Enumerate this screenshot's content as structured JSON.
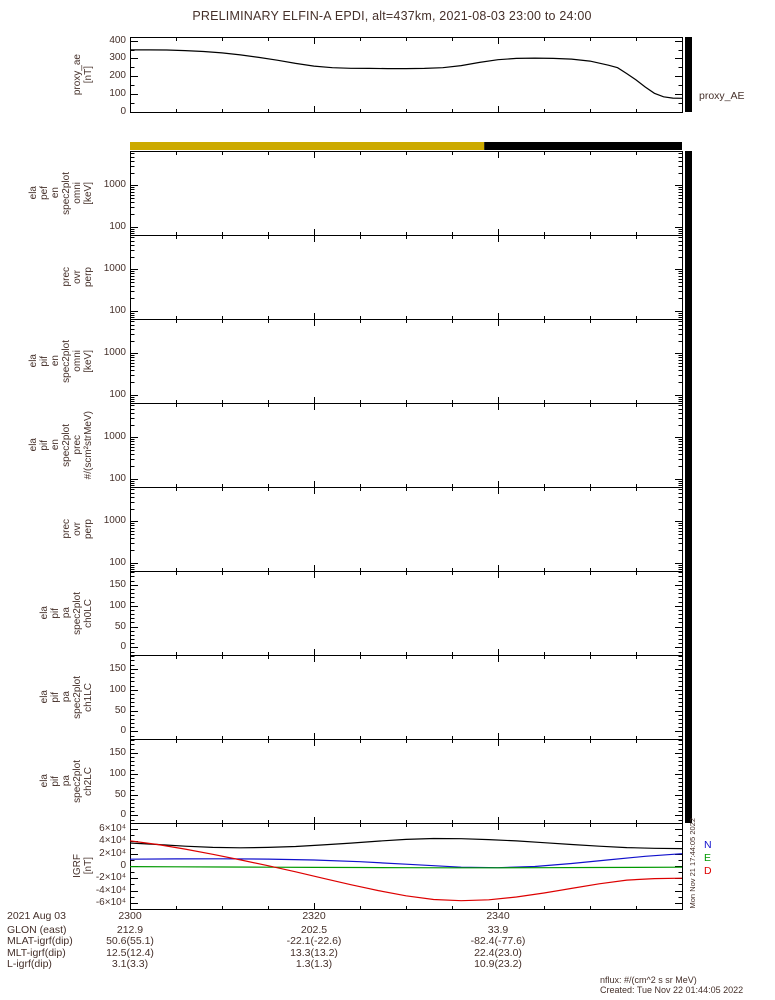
{
  "title": "PRELIMINARY ELFIN-A EPDI, alt=437km, 2021-08-03 23:00 to 24:00",
  "colors": {
    "background": "#ffffff",
    "frame": "#000000",
    "text": "#45302a",
    "orbit_bar_day": "#ccaa00",
    "orbit_bar_night": "#000000",
    "igrf_b": "#000000",
    "igrf_n": "#1111cc",
    "igrf_e": "#009900",
    "igrf_d": "#dd0000"
  },
  "xaxis": {
    "tick_labels": [
      "2300",
      "2320",
      "2340"
    ],
    "tick_minutes": [
      0,
      20,
      40
    ],
    "range_minutes": [
      0,
      60
    ],
    "date_label": "2021 Aug 03"
  },
  "panels": [
    {
      "name": "proxy-ae",
      "ylabel": [
        "proxy_ae",
        "[nT]"
      ],
      "scale": "linear",
      "yrange": [
        0,
        420
      ],
      "minor_step": 50,
      "colorbar": true,
      "yticks": [
        {
          "v": 0,
          "t": "0"
        },
        {
          "v": 100,
          "t": "100"
        },
        {
          "v": 200,
          "t": "200"
        },
        {
          "v": 300,
          "t": "300"
        },
        {
          "v": 400,
          "t": "400"
        }
      ]
    },
    {
      "name": "ela-pef-en-spec2plot-omni",
      "ylabel": [
        "ela",
        "pef",
        "en",
        "spec2plot",
        "omni",
        "[keV]"
      ],
      "scale": "log",
      "yrange": [
        63,
        6800
      ],
      "colorbar": true,
      "yticks": [
        {
          "v": 100,
          "t": "100"
        },
        {
          "v": 1000,
          "t": "1000"
        }
      ]
    },
    {
      "name": "prec-ovr-perp-1",
      "ylabel": [
        "prec",
        "ovr",
        "perp"
      ],
      "scale": "log",
      "yrange": [
        63,
        6800
      ],
      "colorbar": true,
      "yticks": [
        {
          "v": 100,
          "t": "100"
        },
        {
          "v": 1000,
          "t": "1000"
        }
      ]
    },
    {
      "name": "ela-pif-en-spec2plot-omni",
      "ylabel": [
        "ela",
        "pif",
        "en",
        "spec2plot",
        "omni",
        "[keV]"
      ],
      "scale": "log",
      "yrange": [
        63,
        6800
      ],
      "colorbar": true,
      "yticks": [
        {
          "v": 100,
          "t": "100"
        },
        {
          "v": 1000,
          "t": "1000"
        }
      ]
    },
    {
      "name": "ela-pif-en-spec2plot-prec",
      "ylabel": [
        "ela",
        "pif",
        "en",
        "spec2plot",
        "prec",
        "#/(scm²strMeV)"
      ],
      "scale": "log",
      "yrange": [
        63,
        6800
      ],
      "colorbar": true,
      "yticks": [
        {
          "v": 100,
          "t": "100"
        },
        {
          "v": 1000,
          "t": "1000"
        }
      ]
    },
    {
      "name": "prec-ovr-perp-2",
      "ylabel": [
        "prec",
        "ovr",
        "perp"
      ],
      "scale": "log",
      "yrange": [
        63,
        6800
      ],
      "colorbar": true,
      "yticks": [
        {
          "v": 100,
          "t": "100"
        },
        {
          "v": 1000,
          "t": "1000"
        }
      ]
    },
    {
      "name": "ela-pif-pa-spec2plot-ch0LC",
      "ylabel": [
        "ela",
        "pif",
        "pa",
        "spec2plot",
        "ch0LC"
      ],
      "scale": "linear",
      "yrange": [
        -18,
        183
      ],
      "minor_step": 10,
      "colorbar": true,
      "yticks": [
        {
          "v": 0,
          "t": "0"
        },
        {
          "v": 50,
          "t": "50"
        },
        {
          "v": 100,
          "t": "100"
        },
        {
          "v": 150,
          "t": "150"
        }
      ]
    },
    {
      "name": "ela-pif-pa-spec2plot-ch1LC",
      "ylabel": [
        "ela",
        "pif",
        "pa",
        "spec2plot",
        "ch1LC"
      ],
      "scale": "linear",
      "yrange": [
        -18,
        183
      ],
      "minor_step": 10,
      "colorbar": true,
      "yticks": [
        {
          "v": 0,
          "t": "0"
        },
        {
          "v": 50,
          "t": "50"
        },
        {
          "v": 100,
          "t": "100"
        },
        {
          "v": 150,
          "t": "150"
        }
      ]
    },
    {
      "name": "ela-pif-pa-spec2plot-ch2LC",
      "ylabel": [
        "ela",
        "pif",
        "pa",
        "spec2plot",
        "ch2LC"
      ],
      "scale": "linear",
      "yrange": [
        -18,
        183
      ],
      "minor_step": 10,
      "colorbar": true,
      "yticks": [
        {
          "v": 0,
          "t": "0"
        },
        {
          "v": 50,
          "t": "50"
        },
        {
          "v": 100,
          "t": "100"
        },
        {
          "v": 150,
          "t": "150"
        }
      ]
    },
    {
      "name": "igrf",
      "ylabel": [
        "IGRF",
        "[nT]"
      ],
      "scale": "linear",
      "yrange": [
        -70000,
        70000
      ],
      "minor_step": 10000,
      "colorbar": false,
      "yticks": [
        {
          "v": -60000,
          "t": "-6×10⁴"
        },
        {
          "v": -40000,
          "t": "-4×10⁴"
        },
        {
          "v": -20000,
          "t": "-2×10⁴"
        },
        {
          "v": 0,
          "t": "0"
        },
        {
          "v": 20000,
          "t": "2×10⁴"
        },
        {
          "v": 40000,
          "t": "4×10⁴"
        },
        {
          "v": 60000,
          "t": "6×10⁴"
        }
      ]
    }
  ],
  "orbit_bar": {
    "segments": [
      {
        "start_min": 0,
        "end_min": 38.5,
        "color": "#ccaa00"
      },
      {
        "start_min": 38.5,
        "end_min": 60,
        "color": "#000000"
      }
    ]
  },
  "right_labels": {
    "proxy": "proxy_AE",
    "igrf_components": [
      {
        "label": "N",
        "color": "#1111cc"
      },
      {
        "label": "E",
        "color": "#009900"
      },
      {
        "label": "D",
        "color": "#dd0000"
      }
    ]
  },
  "side_note": "Mon Nov 21 17:44:05 2022",
  "footer": {
    "nflux": "nflux: #/(cm^2 s sr MeV)",
    "created": "Created: Tue Nov 22 01:44:05 2022"
  },
  "annotations": [
    {
      "label": "GLON (east)",
      "values": [
        "212.9",
        "202.5",
        "33.9"
      ]
    },
    {
      "label": "MLAT-igrf(dip)",
      "values": [
        "50.6(55.1)",
        "-22.1(-22.6)",
        "-82.4(-77.6)"
      ]
    },
    {
      "label": "MLT-igrf(dip)",
      "values": [
        "12.5(12.4)",
        "13.3(13.2)",
        "22.4(23.0)"
      ]
    },
    {
      "label": "L-igrf(dip)",
      "values": [
        "3.1(3.3)",
        "1.3(1.3)",
        "10.9(23.2)"
      ]
    }
  ],
  "chart_data": [
    {
      "panel": "proxy-ae",
      "type": "line",
      "title": "proxy_AE",
      "ylabel": "proxy_ae [nT]",
      "ylim": [
        0,
        420
      ],
      "x_unit": "minutes after 2021-08-03 23:00 UT",
      "series": [
        {
          "name": "proxy_AE",
          "color": "#000000",
          "x": [
            0,
            2,
            4,
            6,
            8,
            10,
            12,
            14,
            16,
            18,
            20,
            22,
            24,
            26,
            28,
            30,
            32,
            34,
            36,
            38,
            40,
            42,
            44,
            46,
            48,
            50,
            52,
            53,
            54,
            55,
            56,
            57,
            58,
            59,
            60
          ],
          "y": [
            348,
            348,
            347,
            344,
            339,
            331,
            320,
            306,
            290,
            272,
            257,
            248,
            245,
            244,
            243,
            243,
            244,
            248,
            260,
            278,
            293,
            300,
            302,
            300,
            296,
            285,
            262,
            248,
            215,
            180,
            140,
            105,
            85,
            78,
            77
          ]
        }
      ]
    },
    {
      "panel": "igrf",
      "type": "line",
      "title": "IGRF [nT]",
      "ylim": [
        -70000,
        70000
      ],
      "x_unit": "minutes after 2021-08-03 23:00 UT",
      "series": [
        {
          "name": "B",
          "color": "#000000",
          "x": [
            0,
            3,
            6,
            9,
            12,
            15,
            18,
            21,
            24,
            27,
            30,
            33,
            36,
            39,
            42,
            45,
            48,
            51,
            54,
            57,
            60
          ],
          "y": [
            37500,
            35000,
            32200,
            30300,
            29600,
            30200,
            31800,
            34300,
            37300,
            40500,
            43300,
            44800,
            44500,
            43000,
            40800,
            38000,
            35000,
            32200,
            30000,
            28800,
            28300
          ]
        },
        {
          "name": "N",
          "color": "#1111cc",
          "x": [
            0,
            5,
            10,
            15,
            20,
            25,
            30,
            33,
            36,
            40,
            44,
            48,
            52,
            56,
            60
          ],
          "y": [
            11000,
            11500,
            11800,
            11300,
            9800,
            7000,
            3000,
            500,
            -2000,
            -2800,
            -800,
            4000,
            10000,
            15800,
            20000
          ]
        },
        {
          "name": "E",
          "color": "#009900",
          "x": [
            0,
            5,
            10,
            15,
            20,
            25,
            30,
            35,
            40,
            45,
            50,
            55,
            60
          ],
          "y": [
            -1000,
            -1300,
            -1600,
            -1900,
            -2200,
            -2500,
            -2800,
            -3000,
            -3000,
            -2800,
            -2500,
            -2200,
            -2000
          ]
        },
        {
          "name": "D",
          "color": "#dd0000",
          "x": [
            0,
            3,
            6,
            9,
            12,
            15,
            18,
            21,
            24,
            27,
            30,
            33,
            36,
            39,
            42,
            45,
            48,
            51,
            54,
            57,
            60
          ],
          "y": [
            41000,
            35000,
            27500,
            19000,
            10000,
            500,
            -9500,
            -20000,
            -30500,
            -40000,
            -48500,
            -54500,
            -56500,
            -55000,
            -50500,
            -44000,
            -36500,
            -29000,
            -23000,
            -20500,
            -19800
          ]
        }
      ]
    },
    {
      "panel": "spectrograms",
      "type": "heatmap",
      "note": "all energy and pitch-angle spectrogram panels are blank (no flux data rendered); right-hand colorbars are solid black"
    }
  ]
}
